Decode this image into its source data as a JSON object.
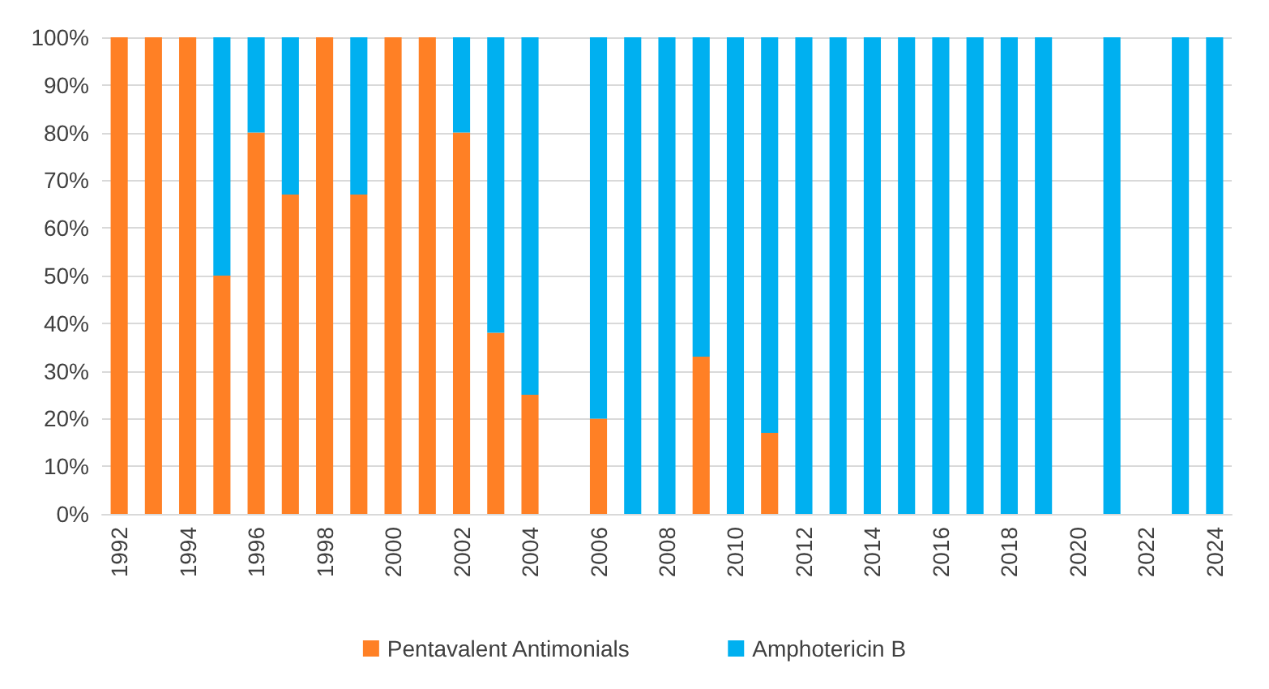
{
  "chart_data": {
    "type": "bar",
    "stacked": true,
    "categories": [
      "1992",
      null,
      "1994",
      null,
      "1996",
      null,
      "1998",
      null,
      "2000",
      null,
      "2002",
      null,
      "2004",
      null,
      "2006",
      null,
      "2008",
      null,
      "2010",
      null,
      "2012",
      null,
      "2014",
      null,
      "2016",
      null,
      "2018",
      null,
      "2020",
      null,
      "2022",
      null,
      "2024"
    ],
    "series": [
      {
        "name": "Pentavalent Antimonials",
        "color": "#ff8025",
        "values": [
          100,
          100,
          100,
          50,
          80,
          67,
          100,
          67,
          100,
          100,
          80,
          38,
          25,
          null,
          20,
          null,
          null,
          33,
          null,
          17,
          null,
          null,
          null,
          null,
          null,
          null,
          null,
          null,
          null,
          null,
          null,
          null,
          null
        ]
      },
      {
        "name": "Amphotericin B",
        "color": "#00b0f0",
        "values": [
          null,
          null,
          null,
          50,
          20,
          33,
          null,
          33,
          null,
          null,
          20,
          62,
          75,
          null,
          80,
          100,
          100,
          67,
          100,
          83,
          100,
          100,
          100,
          100,
          100,
          100,
          100,
          100,
          null,
          100,
          null,
          100,
          100
        ]
      }
    ],
    "ylim": [
      0,
      100
    ],
    "yticks": [
      {
        "value": 0,
        "label": "0%"
      },
      {
        "value": 10,
        "label": "10%"
      },
      {
        "value": 20,
        "label": "20%"
      },
      {
        "value": 30,
        "label": "30%"
      },
      {
        "value": 40,
        "label": "40%"
      },
      {
        "value": 50,
        "label": "50%"
      },
      {
        "value": 60,
        "label": "60%"
      },
      {
        "value": 70,
        "label": "70%"
      },
      {
        "value": 80,
        "label": "80%"
      },
      {
        "value": 90,
        "label": "90%"
      },
      {
        "value": 100,
        "label": "100%"
      }
    ],
    "grid": "y",
    "legend": "bottom"
  }
}
